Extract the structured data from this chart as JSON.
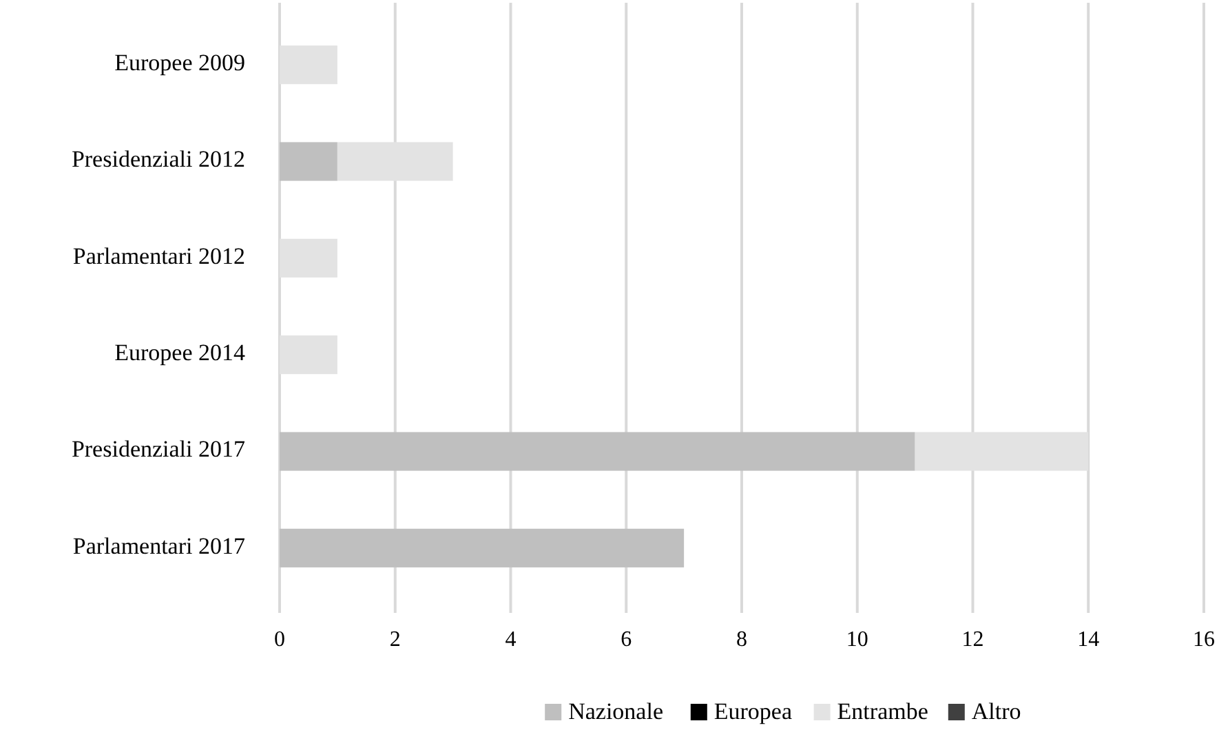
{
  "chart_data": {
    "type": "bar",
    "orientation": "horizontal",
    "stacked": true,
    "categories": [
      "Europee 2009",
      "Presidenziali 2012",
      "Parlamentari 2012",
      "Europee 2014",
      "Presidenziali 2017",
      "Parlamentari 2017"
    ],
    "series": [
      {
        "name": "Nazionale",
        "color": "#bfbfbf",
        "values": [
          0,
          1,
          0,
          0,
          11,
          7
        ]
      },
      {
        "name": "Europea",
        "color": "#000000",
        "values": [
          0,
          0,
          0,
          0,
          0,
          0
        ]
      },
      {
        "name": "Entrambe",
        "color": "#e3e3e3",
        "values": [
          1,
          2,
          1,
          1,
          3,
          0
        ]
      },
      {
        "name": "Altro",
        "color": "#404040",
        "values": [
          0,
          0,
          0,
          0,
          0,
          0
        ]
      }
    ],
    "xlim": [
      0,
      16
    ],
    "xticks": [
      0,
      2,
      4,
      6,
      8,
      10,
      12,
      14,
      16
    ],
    "grid": "x",
    "legend": "bottom"
  }
}
